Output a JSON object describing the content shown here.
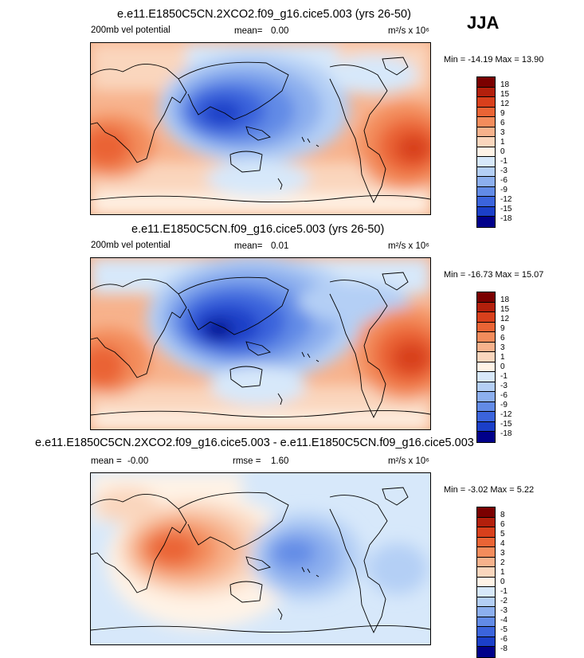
{
  "season": "JJA",
  "panels": [
    {
      "title": "e.e11.E1850C5CN.2XCO2.f09_g16.cice5.003 (yrs 26-50)",
      "field": "200mb vel potential",
      "stat_label": "mean=",
      "stat_value": "0.00",
      "units": "m²/s x 10⁶",
      "min_max": "Min = -14.19 Max =  13.90",
      "levels": [
        "18",
        "15",
        "12",
        "9",
        "6",
        "3",
        "1",
        "0",
        "-1",
        "-3",
        "-6",
        "-9",
        "-12",
        "-15",
        "-18"
      ]
    },
    {
      "title": "e.e11.E1850C5CN.f09_g16.cice5.003 (yrs 26-50)",
      "field": "200mb vel potential",
      "stat_label": "mean=",
      "stat_value": "0.01",
      "units": "m²/s x 10⁶",
      "min_max": "Min = -16.73 Max =  15.07",
      "levels": [
        "18",
        "15",
        "12",
        "9",
        "6",
        "3",
        "1",
        "0",
        "-1",
        "-3",
        "-6",
        "-9",
        "-12",
        "-15",
        "-18"
      ]
    },
    {
      "title": "e.e11.E1850C5CN.2XCO2.f09_g16.cice5.003 - e.e11.E1850C5CN.f09_g16.cice5.003",
      "mean_label": "mean =",
      "mean_value": "-0.00",
      "rmse_label": "rmse =",
      "rmse_value": "1.60",
      "units": "m²/s x 10⁶",
      "min_max": "Min = -3.02 Max =  5.22",
      "levels": [
        "8",
        "6",
        "5",
        "4",
        "3",
        "2",
        "1",
        "0",
        "-1",
        "-2",
        "-3",
        "-4",
        "-5",
        "-6",
        "-8"
      ]
    }
  ],
  "colors": {
    "full": [
      "#7a0000",
      "#b3200c",
      "#d8401c",
      "#ea6435",
      "#f38c5c",
      "#f7b28c",
      "#fad6bd",
      "#fff3e6",
      "#d7e8fa",
      "#b4cff5",
      "#8cafee",
      "#628be6",
      "#3b64dc",
      "#1b3fc8",
      "#00008a"
    ],
    "diff": [
      "#7a0000",
      "#b3200c",
      "#d8401c",
      "#ea6435",
      "#f38c5c",
      "#f7b28c",
      "#fad6bd",
      "#fff3e6",
      "#d7e8fa",
      "#b4cff5",
      "#8cafee",
      "#628be6",
      "#3b64dc",
      "#1b3fc8",
      "#00008a"
    ]
  }
}
